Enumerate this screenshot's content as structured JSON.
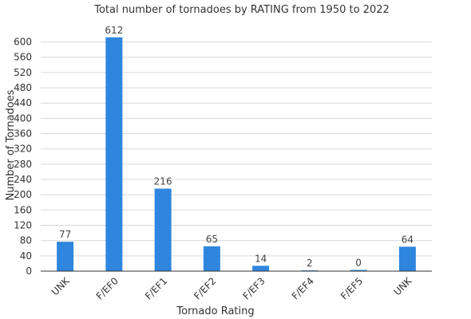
{
  "chart_data": {
    "type": "bar",
    "title": "Total number of tornadoes by RATING from 1950 to 2022",
    "xlabel": "Tornado Rating",
    "ylabel": "Number of Tornadoes",
    "categories": [
      "UNK",
      "F/EF0",
      "F/EF1",
      "F/EF2",
      "F/EF3",
      "F/EF4",
      "F/EF5",
      "UNK"
    ],
    "values": [
      77,
      612,
      216,
      65,
      14,
      2,
      0,
      64
    ],
    "data_labels": [
      "77",
      "612",
      "216",
      "65",
      "14",
      "2",
      "0",
      "64"
    ],
    "ylim": [
      0,
      620
    ],
    "yticks": [
      0,
      40,
      80,
      120,
      160,
      200,
      240,
      280,
      320,
      360,
      400,
      440,
      480,
      520,
      560,
      600
    ],
    "grid": true,
    "legend": "none",
    "bar_color": "#2e86de"
  }
}
